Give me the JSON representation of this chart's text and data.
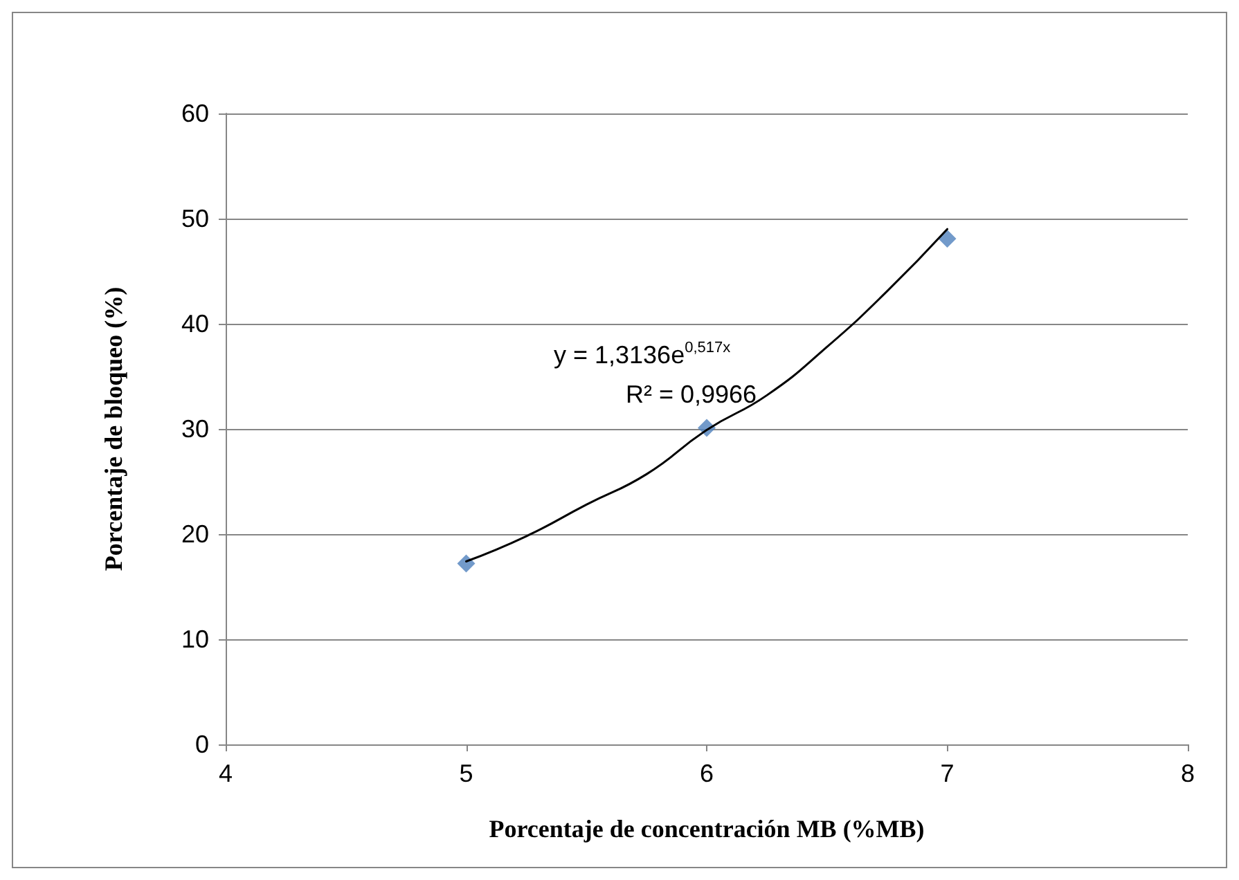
{
  "chart_data": {
    "type": "scatter",
    "xlabel": "Porcentaje de concentración MB (%MB)",
    "ylabel": "Porcentaje de bloqueo (%)",
    "series": [
      {
        "color": "#4f81bd",
        "marker": "diamond",
        "x": [
          5,
          6,
          7
        ],
        "values": [
          17.2,
          30.1,
          48.1
        ]
      },
      {
        "type": "line",
        "color": "#000000",
        "marker": "none",
        "line_style": "solid",
        "x": [
          5,
          5.25,
          5.5,
          5.75,
          6,
          6.25,
          6.5,
          6.75,
          7
        ],
        "values": [
          17.4,
          19.8,
          22.8,
          25.7,
          29.9,
          33.2,
          37.8,
          43.1,
          49.0
        ]
      }
    ],
    "annotations": [
      "y = 1,3136e$^{0,517x}$",
      "R² = 0,9966"
    ],
    "xlim": [
      4,
      8
    ],
    "xticks": [
      4,
      5,
      6,
      7,
      8
    ],
    "ylim": [
      0,
      60
    ],
    "yticks": [
      0,
      10,
      20,
      30,
      40,
      50,
      60
    ],
    "grid": "y"
  }
}
